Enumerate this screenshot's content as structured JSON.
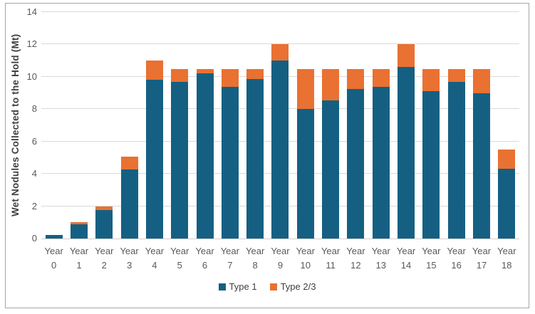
{
  "chart_data": {
    "type": "bar",
    "stacked": true,
    "title": "",
    "xlabel": "",
    "ylabel": "Wet Nodules Collected to the Hold (Mt)",
    "ylim": [
      0,
      14
    ],
    "ytick_step": 2,
    "grid": true,
    "legend_position": "bottom-center",
    "categories": [
      "Year 0",
      "Year 1",
      "Year 2",
      "Year 3",
      "Year 4",
      "Year 5",
      "Year 6",
      "Year 7",
      "Year 8",
      "Year 9",
      "Year 10",
      "Year 11",
      "Year 12",
      "Year 13",
      "Year 14",
      "Year 15",
      "Year 16",
      "Year 17",
      "Year 18"
    ],
    "series": [
      {
        "name": "Type 1",
        "color": "#156082",
        "values": [
          0.2,
          0.9,
          1.75,
          4.25,
          9.8,
          9.7,
          10.2,
          9.4,
          9.85,
          11.0,
          8.0,
          8.55,
          9.25,
          9.4,
          10.6,
          9.1,
          9.7,
          9.0,
          4.3
        ]
      },
      {
        "name": "Type 2/3",
        "color": "#E97132",
        "values": [
          0,
          0.1,
          0.25,
          0.8,
          1.2,
          0.8,
          0.3,
          1.1,
          0.65,
          1.0,
          2.5,
          1.95,
          1.25,
          1.1,
          1.4,
          1.4,
          0.8,
          1.5,
          1.2
        ]
      }
    ]
  },
  "colors": {
    "type1": "#156082",
    "type23": "#E97132",
    "gridline": "#d9d9d9",
    "axis_text": "#595959",
    "ylabel_text": "#404040",
    "frame_border": "#a6a6a6"
  }
}
